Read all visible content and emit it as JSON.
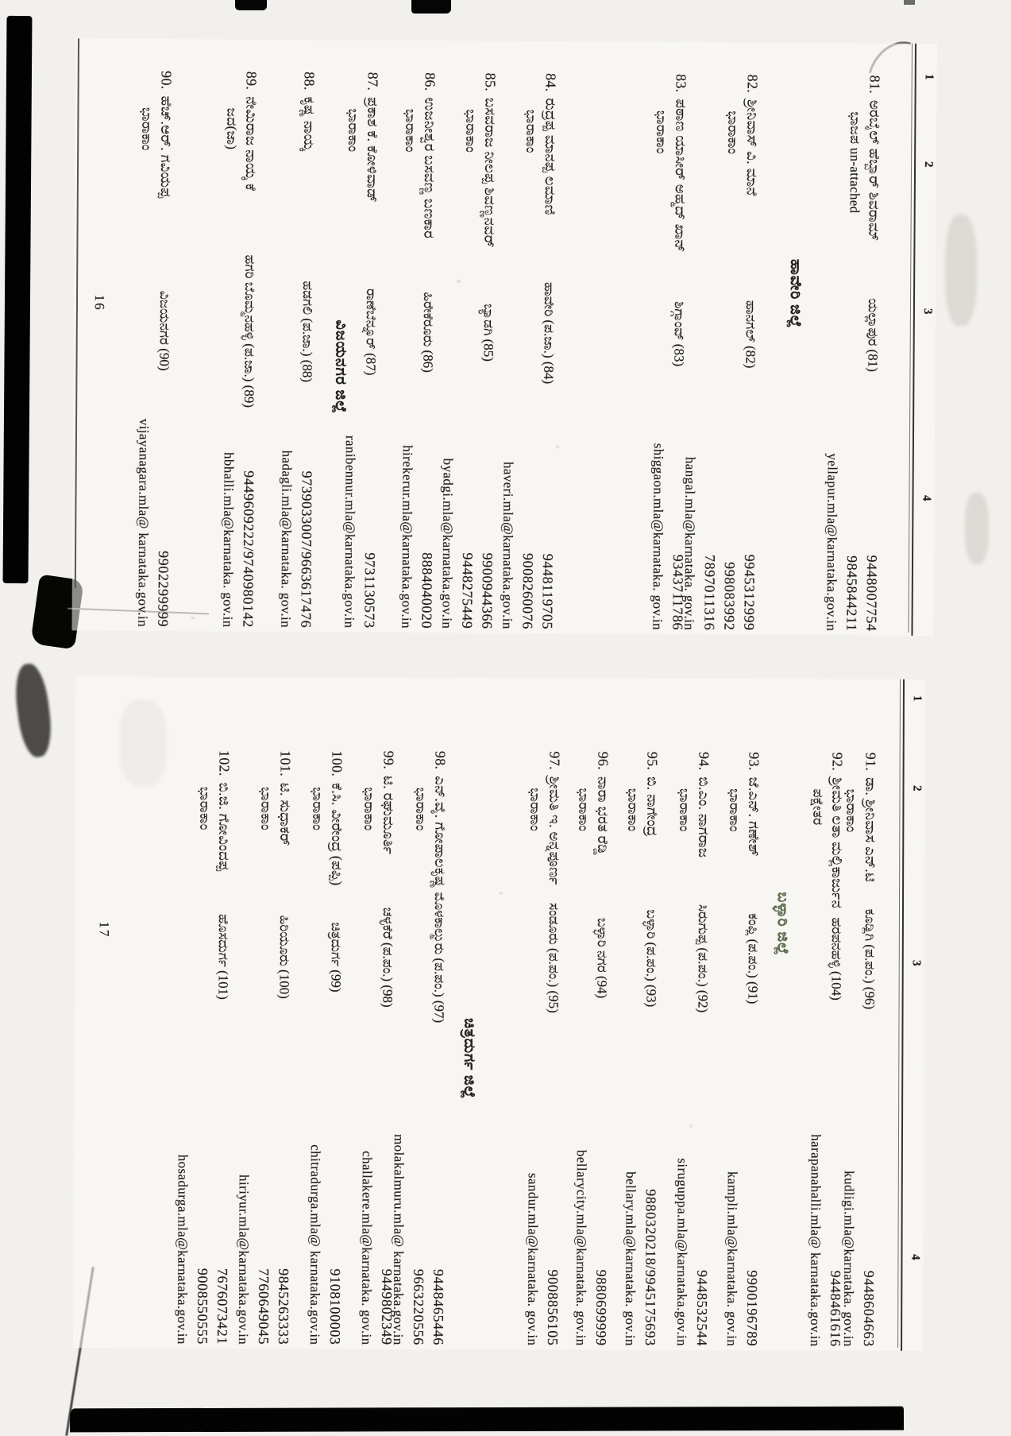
{
  "document": {
    "colors": {
      "ink": "#211f1b",
      "district_stamp": "#5d6f4d",
      "paper": "#f1f0ec"
    },
    "pages": [
      {
        "page_number": "16",
        "column_headers": [
          "1",
          "2",
          "3",
          "4"
        ],
        "rows": [
          {
            "type": "entry",
            "no": "81.",
            "name": "ಅರಬೈಲ್ ಹೆಬ್ಬಾರ್ ಶಿವರಾಮ್",
            "party": "ಭಾಜಪ un-attached",
            "constituency": "ಯಲ್ಲಾಪುರ (81)",
            "email": "yellapur.mla@karnataka.gov.in",
            "phones": [
              "9448007754",
              "9845844211"
            ]
          },
          {
            "type": "district",
            "title": "ಹಾವೇರಿ ಜಿಲ್ಲೆ"
          },
          {
            "type": "entry",
            "no": "82.",
            "name": "ಶ್ರೀನಿವಾಸ್ ವಿ. ಮಾನೆ",
            "party": "ಭಾರಾಕಾಂ",
            "constituency": "ಹಾನಗಲ್ (82)",
            "email": "hangal.mla@karnataka. gov.in",
            "phones": [
              "9945312999",
              "998083992",
              "7897011316"
            ]
          },
          {
            "type": "entry",
            "no": "83.",
            "name": "ಪಠಾಣ ಯಾಸೀರ್ ಅಹ್ಮದ್ ಖಾನ್",
            "party": "ಭಾರಾಕಾಂ",
            "constituency": "ಶಿಗ್ಗಾಂವ್ (83)",
            "email": "shiggaon.mla@karnataka. gov.in",
            "phones": [
              "9343711786"
            ]
          },
          {
            "type": "entry",
            "no": "84.",
            "name": "ರುದ್ರಪ್ಪ ಮಾನಪ್ಪ ಲಮಾಣಿ",
            "party": "ಭಾರಾಕಾಂ",
            "constituency": "ಹಾವೇರಿ (ಪ.ಜಾ.) (84)",
            "email": "haveri.mla@karnataka.gov.in",
            "phones": [
              "9448119705",
              "9008260076"
            ]
          },
          {
            "type": "entry",
            "no": "85.",
            "name": "ಬಸವರಾಜ ನೀಲಪ್ಪ ಶಿವಣ್ಣನವರ್",
            "party": "ಭಾರಾಕಾಂ",
            "constituency": "ಬ್ಯಾಡಗಿ (85)",
            "email": "byadgi.mla@karnataka.gov.in",
            "phones": [
              "9900944366",
              "9448275449"
            ]
          },
          {
            "type": "entry",
            "no": "86.",
            "name": "ಉಜನೀಶ್ವರ ಬಸವಣ್ಣ ಬಣಕಾರ",
            "party": "ಭಾರಾಕಾಂ",
            "constituency": "ಹಿರೇಕೆರೂರು (86)",
            "email": "hirekerur.mla@karnataka.gov.in",
            "phones": [
              "8884040020"
            ]
          },
          {
            "type": "entry",
            "no": "87.",
            "name": "ಪ್ರಕಾಶ ಕೆ. ಕೋಳಿವಾಡ್",
            "party": "ಭಾರಾಕಾಂ",
            "constituency": "ರಾಣೆಬೆನ್ನೂರ್ (87)",
            "email": "ranibennur.mla@karnataka.gov.in",
            "phones": [
              "9731130573"
            ]
          },
          {
            "type": "district",
            "title": "ವಿಜಯನಗರ ಜಿಲ್ಲೆ"
          },
          {
            "type": "entry",
            "no": "88.",
            "name": "ಕೃಷ್ಣ ನಾಯ್ಕ",
            "party": "",
            "constituency": "ಹಡಗಲಿ (ಪ.ಜಾ.) (88)",
            "email": "hadagli.mla@karnataka. gov.in",
            "phones": [
              "9739033007/9663617476"
            ]
          },
          {
            "type": "entry",
            "no": "89.",
            "name": "ನೇಮಿರಾಜ ನಾಯ್ಕ ಕೆ",
            "party": "ಜದ(ಜಾ)",
            "constituency": "ಹಗರಿ ಬೊಮ್ಮನಹಳ್ಳಿ (ಪ.ಜಾ.) (89)",
            "email": "hbhalli.mla@karnataka. gov.in",
            "phones": [
              "9449609222/9740980142"
            ]
          },
          {
            "type": "entry",
            "no": "90.",
            "name": "ಹೆಚ್.ಆರ್. ಗವಿಯಪ್ಪ",
            "party": "ಭಾರಾಕಾಂ",
            "constituency": "ವಿಜಯನಗರ (90)",
            "email": "vijayanagara.mla@ karnataka.gov.in",
            "phones": [
              "9902299999"
            ]
          }
        ]
      },
      {
        "page_number": "17",
        "column_headers": [
          "1",
          "2",
          "3",
          "4"
        ],
        "rows": [
          {
            "type": "entry",
            "no": "91.",
            "name": "ಡಾ. ಶ್ರೀನಿವಾಸ ಎನ್.ಟಿ",
            "party": "ಭಾರಾಕಾಂ",
            "constituency": "ಕೂಡ್ಲಿಗಿ (ಪ.ಪಂ.) (96)",
            "email": "kudligi.mla@karnataka. gov.in",
            "phones": [
              "9448604663"
            ]
          },
          {
            "type": "entry",
            "no": "92.",
            "name": "ಶ್ರೀಮತಿ ಲತಾ ಮಲ್ಲಿಕಾರ್ಜುನ",
            "party": "ಪಕ್ಷೇತರ",
            "constituency": "ಹರಪನಹಳ್ಳಿ (104)",
            "email": "harapanahalli.mla@ karnataka.gov.in",
            "phones": [
              "9448461616"
            ]
          },
          {
            "type": "district",
            "title": "ಬಳ್ಳಾರಿ ಜಿಲ್ಲೆ",
            "stamp": true
          },
          {
            "type": "entry",
            "no": "93.",
            "name": "ಜೆ.ಎನ್. ಗಣೇಶ್",
            "party": "ಭಾರಾಕಾಂ",
            "constituency": "ಕಂಪ್ಲಿ (ಪ.ಪಂ.) (91)",
            "email": "kampli.mla@karnataka. gov.in",
            "phones": [
              "9900196789"
            ]
          },
          {
            "type": "entry",
            "no": "94.",
            "name": "ಬಿ.ಎಂ. ನಾಗರಾಜ",
            "party": "ಭಾರಾಕಾಂ",
            "constituency": "ಸಿರುಗುಪ್ಪ (ಪ.ಪಂ.) (92)",
            "email": "siruguppa.mla@karnataka.gov.in",
            "phones": [
              "9448532544"
            ]
          },
          {
            "type": "entry",
            "no": "95.",
            "name": "ಬಿ. ನಾಗೇಂದ್ರ",
            "party": "ಭಾರಾಕಾಂ",
            "constituency": "ಬಳ್ಳಾರಿ (ಪ.ಪಂ.) (93)",
            "email": "bellary.mla@karnataka. gov.in",
            "phones": [
              "9880320218/9945175693"
            ]
          },
          {
            "type": "entry",
            "no": "96.",
            "name": "ನಾರಾ ಭರತ ರೆಡ್ಡಿ",
            "party": "ಭಾರಾಕಾಂ",
            "constituency": "ಬಳ್ಳಾರಿ ನಗರ (94)",
            "email": "bellarycity.mla@karnataka. gov.in",
            "phones": [
              "9880699999"
            ]
          },
          {
            "type": "entry",
            "no": "97.",
            "name": "ಶ್ರೀಮತಿ ಇ. ಅನ್ನಪೂರ್ಣ",
            "party": "ಭಾರಾಕಾಂ",
            "constituency": "ಸಂಡೂರು (ಪ.ಪಂ.) (95)",
            "email": "sandur.mla@karnataka. gov.in",
            "phones": [
              "9008856105"
            ]
          },
          {
            "type": "district",
            "title": "ಚಿತ್ರದುರ್ಗ ಜಿಲ್ಲೆ"
          },
          {
            "type": "entry",
            "no": "98.",
            "name": "ಎನ್.ವೈ. ಗೋಪಾಲಕೃಷ್ಣ",
            "party": "ಭಾರಾಕಾಂ",
            "constituency": "ಮೊಳಕಾಲ್ಮುರು (ಪ.ಪಂ.) (97)",
            "email": "molakalmuru.mla@ karnataka.gov.in",
            "phones": [
              "9448465446",
              "9663220556"
            ]
          },
          {
            "type": "entry",
            "no": "99.",
            "name": "ಟಿ. ರಘುಮೂರ್ತಿ",
            "party": "ಭಾರಾಕಾಂ",
            "constituency": "ಚಳ್ಳಕೆರೆ (ಪ.ಪಂ.) (98)",
            "email": "challakere.mla@karnataka. gov.in",
            "phones": [
              "9449802349"
            ]
          },
          {
            "type": "entry",
            "no": "100.",
            "name": "ಕೆ.ಸಿ. ವೀರೇಂದ್ರ (ಪಪ್ಪಿ)",
            "party": "ಭಾರಾಕಾಂ",
            "constituency": "ಚಿತ್ರದುರ್ಗ (99)",
            "email": "chitradurga.mla@ karnataka.gov.in",
            "phones": [
              "9108100003"
            ]
          },
          {
            "type": "entry",
            "no": "101.",
            "name": "ಟಿ. ಸುಧಾಕರ್",
            "party": "ಭಾರಾಕಾಂ",
            "constituency": "ಹಿರಿಯೂರು (100)",
            "email": "hiriyur.mla@karnataka.gov.in",
            "phones": [
              "9845263333",
              "7760649045"
            ]
          },
          {
            "type": "entry",
            "no": "102.",
            "name": "ಬಿ.ಜಿ. ಗೋವಿಂದಪ್ಪ",
            "party": "ಭಾರಾಕಾಂ",
            "constituency": "ಹೊಸದುರ್ಗ (101)",
            "email": "hosadurga.mla@karnataka.gov.in",
            "phones": [
              "7676073421",
              "9008550555"
            ]
          }
        ]
      }
    ]
  }
}
